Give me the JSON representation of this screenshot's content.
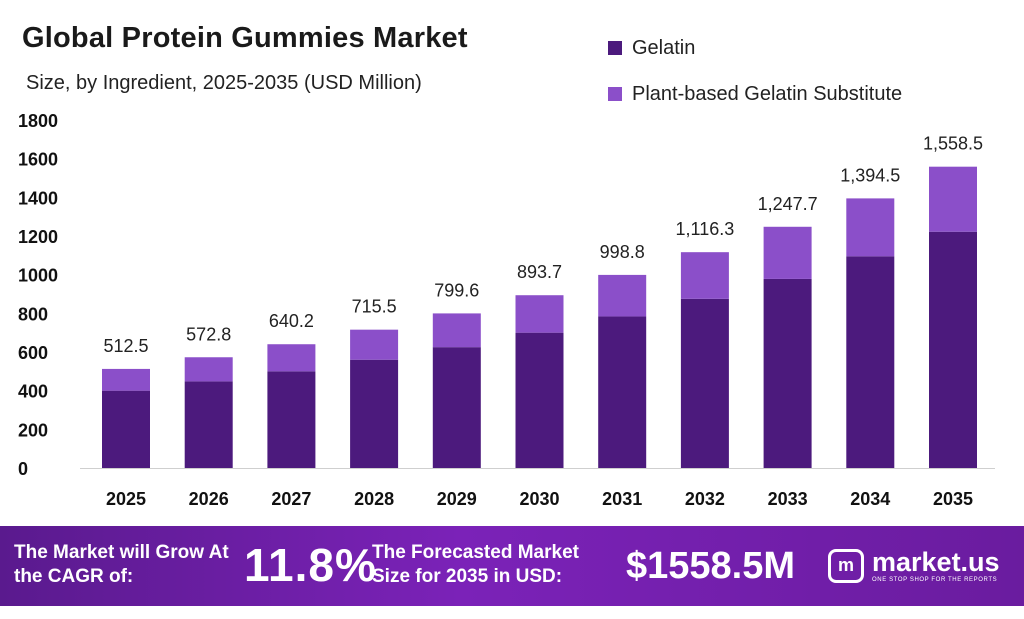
{
  "header": {
    "title": "Global Protein Gummies Market",
    "subtitle": "Size, by Ingredient, 2025-2035 (USD Million)"
  },
  "legend": [
    {
      "label": "Gelatin",
      "color": "#4c1a7d"
    },
    {
      "label": "Plant-based Gelatin Substitute",
      "color": "#8b4fc9"
    }
  ],
  "chart_data": {
    "type": "bar",
    "stacked": true,
    "title": "Global Protein Gummies Market",
    "subtitle": "Size, by Ingredient, 2025-2035 (USD Million)",
    "categories": [
      "2025",
      "2026",
      "2027",
      "2028",
      "2029",
      "2030",
      "2031",
      "2032",
      "2033",
      "2034",
      "2035"
    ],
    "series": [
      {
        "name": "Gelatin",
        "color": "#4c1a7d",
        "values": [
          400,
          448,
          500,
          560,
          625,
          700,
          784,
          875,
          978,
          1095,
          1222
        ]
      },
      {
        "name": "Plant-based Gelatin Substitute",
        "color": "#8b4fc9",
        "values": [
          112.5,
          124.8,
          140.2,
          155.5,
          174.6,
          193.7,
          214.8,
          241.3,
          269.7,
          299.5,
          336.5
        ]
      }
    ],
    "totals": [
      512.5,
      572.8,
      640.2,
      715.5,
      799.6,
      893.7,
      998.8,
      1116.3,
      1247.7,
      1394.5,
      1558.5
    ],
    "total_labels": [
      "512.5",
      "572.8",
      "640.2",
      "715.5",
      "799.6",
      "893.7",
      "998.8",
      "1,116.3",
      "1,247.7",
      "1,394.5",
      "1,558.5"
    ],
    "yticks": [
      0,
      200,
      400,
      600,
      800,
      1000,
      1200,
      1400,
      1600,
      1800
    ],
    "ylim": [
      0,
      1800
    ],
    "grid": false,
    "legend_position": "top-right",
    "xlabel": "",
    "ylabel": ""
  },
  "footer": {
    "grow_text": "The Market will Grow At the CAGR of:",
    "cagr_value": "11.8%",
    "forecast_text": "The Forecasted Market Size for 2035 in USD:",
    "forecast_value": "$1558.5M",
    "logo_name": "market.us",
    "logo_tagline": "ONE STOP SHOP FOR THE REPORTS"
  }
}
